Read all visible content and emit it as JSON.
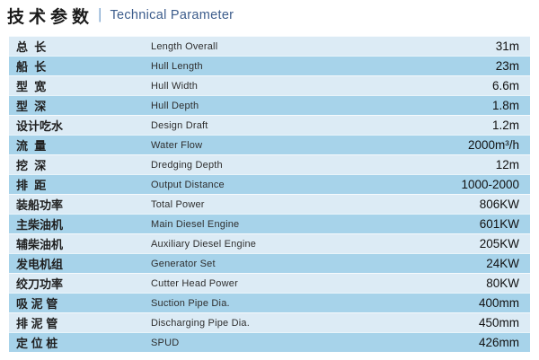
{
  "header": {
    "title_cn": "技术参数",
    "divider": "|",
    "title_en": "Technical Parameter"
  },
  "colors": {
    "title_cn": "#1a1a1a",
    "title_en": "#3d5d8c",
    "divider": "#7ea6cf",
    "row_light": "#dcebf5",
    "row_dark": "#a7d3ea",
    "label_cn": "#1f1f1f",
    "label_en": "#2e2e2e",
    "value": "#111111"
  },
  "table": {
    "columns": [
      "chinese-label",
      "english-label",
      "value"
    ],
    "rows": [
      {
        "cn": "总  长",
        "en": "Length Overall",
        "value": "31m"
      },
      {
        "cn": "船  长",
        "en": "Hull Length",
        "value": "23m"
      },
      {
        "cn": "型  宽",
        "en": "Hull Width",
        "value": "6.6m"
      },
      {
        "cn": "型  深",
        "en": "Hull Depth",
        "value": "1.8m"
      },
      {
        "cn": "设计吃水",
        "en": "Design Draft",
        "value": "1.2m"
      },
      {
        "cn": "流  量",
        "en": "Water Flow",
        "value": "2000m³/h"
      },
      {
        "cn": "挖  深",
        "en": "Dredging Depth",
        "value": "12m"
      },
      {
        "cn": "排  距",
        "en": "Output Distance",
        "value": "1000-2000"
      },
      {
        "cn": "装船功率",
        "en": "Total Power",
        "value": "806KW"
      },
      {
        "cn": "主柴油机",
        "en": "Main Diesel Engine",
        "value": "601KW"
      },
      {
        "cn": "辅柴油机",
        "en": "Auxiliary Diesel Engine",
        "value": "205KW"
      },
      {
        "cn": "发电机组",
        "en": "Generator Set",
        "value": "24KW"
      },
      {
        "cn": "绞刀功率",
        "en": "Cutter Head Power",
        "value": "80KW"
      },
      {
        "cn": "吸 泥 管",
        "en": "Suction Pipe Dia.",
        "value": "400mm"
      },
      {
        "cn": "排 泥 管",
        "en": "Discharging Pipe Dia.",
        "value": "450mm"
      },
      {
        "cn": "定 位 桩",
        "en": "SPUD",
        "value": "426mm"
      }
    ]
  }
}
